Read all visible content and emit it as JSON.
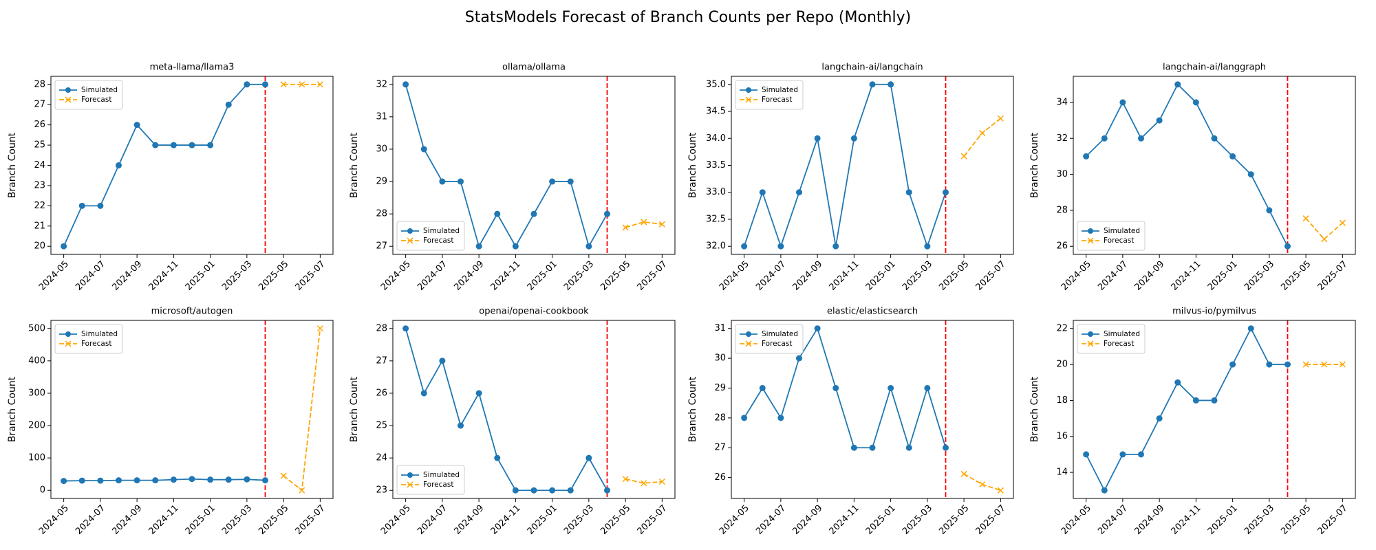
{
  "title": "StatsModels Forecast of Branch Counts per Repo (Monthly)",
  "chart_data": [
    {
      "type": "line",
      "title": "meta-llama/llama3",
      "ylabel": "Branch Count",
      "legend": "upper left",
      "vline": {
        "x": "2025-04",
        "color": "#ff0000"
      },
      "xticks": [
        "2024-05",
        "2024-07",
        "2024-09",
        "2024-11",
        "2025-01",
        "2025-03",
        "2025-05",
        "2025-07"
      ],
      "ylim": [
        19.6,
        28.4
      ],
      "yticks": [
        20,
        21,
        22,
        23,
        24,
        25,
        26,
        27,
        28
      ],
      "series": [
        {
          "name": "Simulated",
          "color": "#1f77b4",
          "marker": "o",
          "linestyle": "solid",
          "x": [
            "2024-05",
            "2024-06",
            "2024-07",
            "2024-08",
            "2024-09",
            "2024-10",
            "2024-11",
            "2024-12",
            "2025-01",
            "2025-02",
            "2025-03",
            "2025-04"
          ],
          "values": [
            20,
            22,
            22,
            24,
            26,
            25,
            25,
            25,
            25,
            27,
            28,
            28
          ]
        },
        {
          "name": "Forecast",
          "color": "#ffa500",
          "marker": "x",
          "linestyle": "dashed",
          "x": [
            "2025-05",
            "2025-06",
            "2025-07"
          ],
          "values": [
            28,
            28,
            28
          ]
        }
      ]
    },
    {
      "type": "line",
      "title": "ollama/ollama",
      "ylabel": "Branch Count",
      "legend": "lower left",
      "vline": {
        "x": "2025-04",
        "color": "#ff0000"
      },
      "xticks": [
        "2024-05",
        "2024-07",
        "2024-09",
        "2024-11",
        "2025-01",
        "2025-03",
        "2025-05",
        "2025-07"
      ],
      "ylim": [
        26.75,
        32.25
      ],
      "yticks": [
        27,
        28,
        29,
        30,
        31,
        32
      ],
      "series": [
        {
          "name": "Simulated",
          "color": "#1f77b4",
          "marker": "o",
          "linestyle": "solid",
          "x": [
            "2024-05",
            "2024-06",
            "2024-07",
            "2024-08",
            "2024-09",
            "2024-10",
            "2024-11",
            "2024-12",
            "2025-01",
            "2025-02",
            "2025-03",
            "2025-04"
          ],
          "values": [
            32,
            30,
            29,
            29,
            27,
            28,
            27,
            28,
            29,
            29,
            27,
            28
          ]
        },
        {
          "name": "Forecast",
          "color": "#ffa500",
          "marker": "x",
          "linestyle": "dashed",
          "x": [
            "2025-05",
            "2025-06",
            "2025-07"
          ],
          "values": [
            27.58,
            27.75,
            27.68
          ]
        }
      ]
    },
    {
      "type": "line",
      "title": "langchain-ai/langchain",
      "ylabel": "Branch Count",
      "legend": "upper left",
      "vline": {
        "x": "2025-04",
        "color": "#ff0000"
      },
      "xticks": [
        "2024-05",
        "2024-07",
        "2024-09",
        "2024-11",
        "2025-01",
        "2025-03",
        "2025-05",
        "2025-07"
      ],
      "ylim": [
        31.85,
        35.15
      ],
      "yticks": [
        {
          "value": 32,
          "label": "32.0"
        },
        32.5,
        {
          "value": 33,
          "label": "33.0"
        },
        33.5,
        {
          "value": 34,
          "label": "34.0"
        },
        34.5,
        {
          "value": 35,
          "label": "35.0"
        }
      ],
      "series": [
        {
          "name": "Simulated",
          "color": "#1f77b4",
          "marker": "o",
          "linestyle": "solid",
          "x": [
            "2024-05",
            "2024-06",
            "2024-07",
            "2024-08",
            "2024-09",
            "2024-10",
            "2024-11",
            "2024-12",
            "2025-01",
            "2025-02",
            "2025-03",
            "2025-04"
          ],
          "values": [
            32,
            33,
            32,
            33,
            34,
            32,
            34,
            35,
            35,
            33,
            32,
            33
          ]
        },
        {
          "name": "Forecast",
          "color": "#ffa500",
          "marker": "x",
          "linestyle": "dashed",
          "x": [
            "2025-05",
            "2025-06",
            "2025-07"
          ],
          "values": [
            33.67,
            34.1,
            34.37
          ]
        }
      ]
    },
    {
      "type": "line",
      "title": "langchain-ai/langgraph",
      "ylabel": "Branch Count",
      "legend": "lower left",
      "vline": {
        "x": "2025-04",
        "color": "#ff0000"
      },
      "xticks": [
        "2024-05",
        "2024-07",
        "2024-09",
        "2024-11",
        "2025-01",
        "2025-03",
        "2025-05",
        "2025-07"
      ],
      "ylim": [
        25.55,
        35.45
      ],
      "yticks": [
        26,
        28,
        30,
        32,
        34
      ],
      "series": [
        {
          "name": "Simulated",
          "color": "#1f77b4",
          "marker": "o",
          "linestyle": "solid",
          "x": [
            "2024-05",
            "2024-06",
            "2024-07",
            "2024-08",
            "2024-09",
            "2024-10",
            "2024-11",
            "2024-12",
            "2025-01",
            "2025-02",
            "2025-03",
            "2025-04"
          ],
          "values": [
            31,
            32,
            34,
            32,
            33,
            35,
            34,
            32,
            31,
            30,
            28,
            26
          ]
        },
        {
          "name": "Forecast",
          "color": "#ffa500",
          "marker": "x",
          "linestyle": "dashed",
          "x": [
            "2025-05",
            "2025-06",
            "2025-07"
          ],
          "values": [
            27.55,
            26.4,
            27.3
          ]
        }
      ]
    },
    {
      "type": "line",
      "title": "microsoft/autogen",
      "ylabel": "Branch Count",
      "legend": "upper left",
      "vline": {
        "x": "2025-04",
        "color": "#ff0000"
      },
      "xticks": [
        "2024-05",
        "2024-07",
        "2024-09",
        "2024-11",
        "2025-01",
        "2025-03",
        "2025-05",
        "2025-07"
      ],
      "ylim": [
        -25,
        525
      ],
      "yticks": [
        0,
        100,
        200,
        300,
        400,
        500
      ],
      "series": [
        {
          "name": "Simulated",
          "color": "#1f77b4",
          "marker": "o",
          "linestyle": "solid",
          "x": [
            "2024-05",
            "2024-06",
            "2024-07",
            "2024-08",
            "2024-09",
            "2024-10",
            "2024-11",
            "2024-12",
            "2025-01",
            "2025-02",
            "2025-03",
            "2025-04"
          ],
          "values": [
            29,
            30,
            30,
            31,
            31,
            31,
            33,
            35,
            33,
            33,
            34,
            31
          ]
        },
        {
          "name": "Forecast",
          "color": "#ffa500",
          "marker": "x",
          "linestyle": "dashed",
          "x": [
            "2025-05",
            "2025-06",
            "2025-07"
          ],
          "values": [
            45,
            0,
            500
          ]
        }
      ]
    },
    {
      "type": "line",
      "title": "openai/openai-cookbook",
      "ylabel": "Branch Count",
      "legend": "lower left",
      "vline": {
        "x": "2025-04",
        "color": "#ff0000"
      },
      "xticks": [
        "2024-05",
        "2024-07",
        "2024-09",
        "2024-11",
        "2025-01",
        "2025-03",
        "2025-05",
        "2025-07"
      ],
      "ylim": [
        22.75,
        28.25
      ],
      "yticks": [
        23,
        24,
        25,
        26,
        27,
        28
      ],
      "series": [
        {
          "name": "Simulated",
          "color": "#1f77b4",
          "marker": "o",
          "linestyle": "solid",
          "x": [
            "2024-05",
            "2024-06",
            "2024-07",
            "2024-08",
            "2024-09",
            "2024-10",
            "2024-11",
            "2024-12",
            "2025-01",
            "2025-02",
            "2025-03",
            "2025-04"
          ],
          "values": [
            28,
            26,
            27,
            25,
            26,
            24,
            23,
            23,
            23,
            23,
            24,
            23
          ]
        },
        {
          "name": "Forecast",
          "color": "#ffa500",
          "marker": "x",
          "linestyle": "dashed",
          "x": [
            "2025-05",
            "2025-06",
            "2025-07"
          ],
          "values": [
            23.35,
            23.22,
            23.27
          ]
        }
      ]
    },
    {
      "type": "line",
      "title": "elastic/elasticsearch",
      "ylabel": "Branch Count",
      "legend": "upper left",
      "vline": {
        "x": "2025-04",
        "color": "#ff0000"
      },
      "xticks": [
        "2024-05",
        "2024-07",
        "2024-09",
        "2024-11",
        "2025-01",
        "2025-03",
        "2025-05",
        "2025-07"
      ],
      "ylim": [
        25.3,
        31.27
      ],
      "yticks": [
        26,
        27,
        28,
        29,
        30,
        31
      ],
      "series": [
        {
          "name": "Simulated",
          "color": "#1f77b4",
          "marker": "o",
          "linestyle": "solid",
          "x": [
            "2024-05",
            "2024-06",
            "2024-07",
            "2024-08",
            "2024-09",
            "2024-10",
            "2024-11",
            "2024-12",
            "2025-01",
            "2025-02",
            "2025-03",
            "2025-04"
          ],
          "values": [
            28,
            29,
            28,
            30,
            31,
            29,
            27,
            27,
            29,
            27,
            29,
            27
          ]
        },
        {
          "name": "Forecast",
          "color": "#ffa500",
          "marker": "x",
          "linestyle": "dashed",
          "x": [
            "2025-05",
            "2025-06",
            "2025-07"
          ],
          "values": [
            26.12,
            25.77,
            25.57
          ]
        }
      ]
    },
    {
      "type": "line",
      "title": "milvus-io/pymilvus",
      "ylabel": "Branch Count",
      "legend": "upper left",
      "vline": {
        "x": "2025-04",
        "color": "#ff0000"
      },
      "xticks": [
        "2024-05",
        "2024-07",
        "2024-09",
        "2024-11",
        "2025-01",
        "2025-03",
        "2025-05",
        "2025-07"
      ],
      "ylim": [
        12.55,
        22.45
      ],
      "yticks": [
        14,
        16,
        18,
        20,
        22
      ],
      "series": [
        {
          "name": "Simulated",
          "color": "#1f77b4",
          "marker": "o",
          "linestyle": "solid",
          "x": [
            "2024-05",
            "2024-06",
            "2024-07",
            "2024-08",
            "2024-09",
            "2024-10",
            "2024-11",
            "2024-12",
            "2025-01",
            "2025-02",
            "2025-03",
            "2025-04"
          ],
          "values": [
            15,
            13,
            15,
            15,
            17,
            19,
            18,
            18,
            20,
            22,
            20,
            20
          ]
        },
        {
          "name": "Forecast",
          "color": "#ffa500",
          "marker": "x",
          "linestyle": "dashed",
          "x": [
            "2025-05",
            "2025-06",
            "2025-07"
          ],
          "values": [
            20,
            20,
            20
          ]
        }
      ]
    }
  ]
}
